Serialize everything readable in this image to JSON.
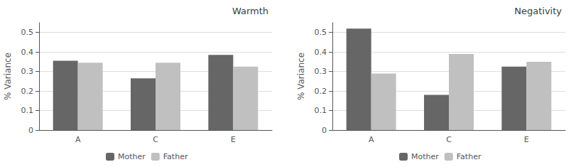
{
  "chart_data": [
    {
      "type": "bar",
      "title": "Warmth",
      "ylabel": "% Variance",
      "categories": [
        "A",
        "C",
        "E"
      ],
      "series": [
        {
          "name": "Mother",
          "color": "#666666",
          "values": [
            0.355,
            0.265,
            0.385
          ]
        },
        {
          "name": "Father",
          "color": "#c0c0c0",
          "values": [
            0.345,
            0.345,
            0.325
          ]
        }
      ],
      "ylim": [
        0,
        0.55
      ],
      "yticks": [
        0,
        0.1,
        0.2,
        0.3,
        0.4,
        0.5
      ],
      "grid": true,
      "legend": "bottom"
    },
    {
      "type": "bar",
      "title": "Negativity",
      "ylabel": "% Variance",
      "categories": [
        "A",
        "C",
        "E"
      ],
      "series": [
        {
          "name": "Mother",
          "color": "#666666",
          "values": [
            0.52,
            0.18,
            0.325
          ]
        },
        {
          "name": "Father",
          "color": "#c0c0c0",
          "values": [
            0.29,
            0.39,
            0.35
          ]
        }
      ],
      "ylim": [
        0,
        0.55
      ],
      "yticks": [
        0,
        0.1,
        0.2,
        0.3,
        0.4,
        0.5
      ],
      "grid": true,
      "legend": "bottom"
    }
  ]
}
